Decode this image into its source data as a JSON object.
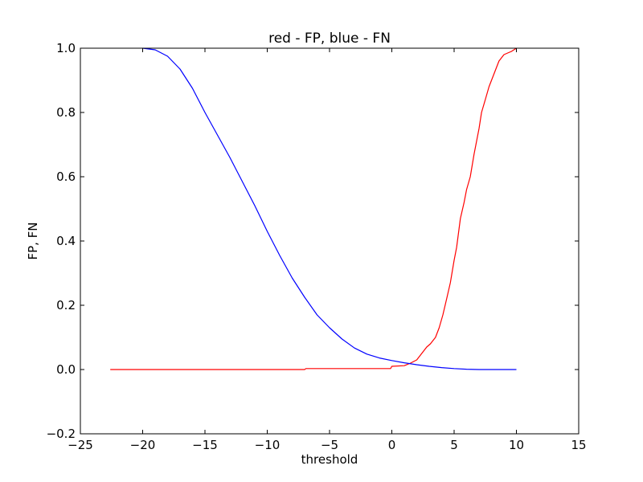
{
  "chart_data": {
    "type": "line",
    "title": "red - FP, blue - FN",
    "xlabel": "threshold",
    "ylabel": "FP, FN",
    "xlim": [
      -25,
      15
    ],
    "ylim": [
      -0.2,
      1.0
    ],
    "xticks": [
      -25,
      -20,
      -15,
      -10,
      -5,
      0,
      5,
      10,
      15
    ],
    "xtick_labels": [
      "−25",
      "−20",
      "−15",
      "−10",
      "−5",
      "0",
      "5",
      "10",
      "15"
    ],
    "yticks": [
      -0.2,
      0.0,
      0.2,
      0.4,
      0.6,
      0.8,
      1.0
    ],
    "ytick_labels": [
      "−0.2",
      "0.0",
      "0.2",
      "0.4",
      "0.6",
      "0.8",
      "1.0"
    ],
    "grid": false,
    "series": [
      {
        "color": "#ff0000",
        "x": [
          -22.6,
          -7.0,
          -6.9,
          -0.1,
          0.0,
          1.0,
          1.5,
          2.0,
          2.4,
          2.8,
          3.1,
          3.5,
          3.8,
          4.1,
          4.4,
          4.7,
          5.0,
          5.2,
          5.5,
          5.8,
          6.0,
          6.3,
          6.6,
          7.0,
          7.2,
          7.5,
          7.8,
          8.2,
          8.6,
          9.0,
          9.3,
          9.6,
          10.0
        ],
        "y": [
          0.0,
          0.0,
          0.003,
          0.003,
          0.01,
          0.012,
          0.02,
          0.03,
          0.05,
          0.07,
          0.08,
          0.1,
          0.13,
          0.17,
          0.22,
          0.27,
          0.34,
          0.38,
          0.47,
          0.52,
          0.56,
          0.6,
          0.67,
          0.75,
          0.8,
          0.84,
          0.88,
          0.92,
          0.96,
          0.98,
          0.985,
          0.99,
          1.0
        ]
      },
      {
        "color": "#0000ff",
        "x": [
          -20.0,
          -19.0,
          -18.0,
          -17.0,
          -16.0,
          -15.0,
          -14.0,
          -13.0,
          -12.0,
          -11.0,
          -10.0,
          -9.0,
          -8.0,
          -7.0,
          -6.0,
          -5.0,
          -4.0,
          -3.0,
          -2.0,
          -1.0,
          0.0,
          1.0,
          2.0,
          3.0,
          4.0,
          5.0,
          6.0,
          7.0,
          8.0,
          9.0,
          10.0
        ],
        "y": [
          1.0,
          0.995,
          0.975,
          0.935,
          0.875,
          0.8,
          0.73,
          0.66,
          0.585,
          0.51,
          0.43,
          0.355,
          0.285,
          0.225,
          0.17,
          0.13,
          0.095,
          0.067,
          0.048,
          0.036,
          0.028,
          0.021,
          0.015,
          0.01,
          0.006,
          0.003,
          0.001,
          0.0,
          0.0,
          0.0,
          0.0
        ]
      }
    ]
  }
}
